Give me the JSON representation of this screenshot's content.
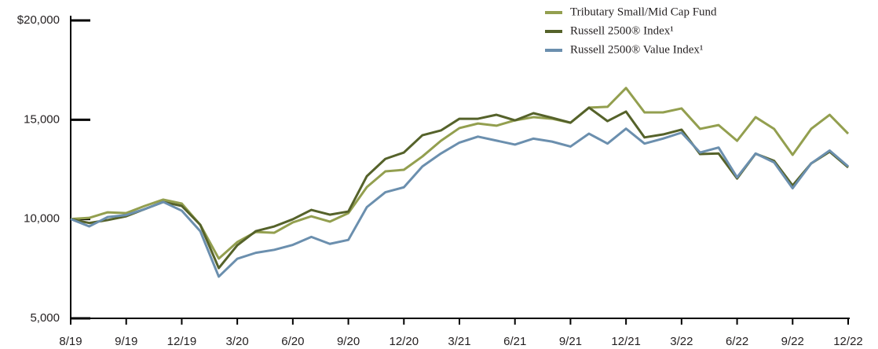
{
  "chart_data": {
    "type": "line",
    "categories": [
      "8/19",
      null,
      null,
      "9/19",
      null,
      null,
      "12/19",
      null,
      null,
      "3/20",
      null,
      null,
      "6/20",
      null,
      null,
      "9/20",
      null,
      null,
      "12/20",
      null,
      null,
      "3/21",
      null,
      null,
      "6/21",
      null,
      null,
      "9/21",
      null,
      null,
      "12/21",
      null,
      null,
      "3/22",
      null,
      null,
      "6/22",
      null,
      null,
      "9/22",
      null,
      null,
      "12/22"
    ],
    "series": [
      {
        "name": "Tributary Small/Mid Cap Fund",
        "color": "#939f4f",
        "values": [
          10000,
          10060,
          10340,
          10300,
          10660,
          10980,
          10780,
          9710,
          8010,
          8840,
          9350,
          9310,
          9830,
          10140,
          9870,
          10300,
          11610,
          12400,
          12480,
          13150,
          13940,
          14580,
          14810,
          14700,
          14970,
          15130,
          15050,
          14850,
          15610,
          15650,
          16600,
          15370,
          15370,
          15570,
          14540,
          14730,
          13940,
          15130,
          14540,
          13230,
          14540,
          15250,
          14300
        ]
      },
      {
        "name": "Russell 2500® Index¹",
        "color": "#55622a",
        "values": [
          10000,
          9800,
          9950,
          10140,
          10500,
          10860,
          10660,
          9710,
          7530,
          8680,
          9390,
          9630,
          9990,
          10460,
          10220,
          10380,
          12160,
          13030,
          13350,
          14220,
          14460,
          15050,
          15050,
          15250,
          14970,
          15330,
          15100,
          14850,
          15610,
          14930,
          15410,
          14110,
          14260,
          14500,
          13270,
          13300,
          12040,
          13290,
          12930,
          11690,
          12800,
          13390,
          12600
        ]
      },
      {
        "name": "Russell 2500® Value Index¹",
        "color": "#6b8fae",
        "values": [
          10000,
          9630,
          10100,
          10200,
          10500,
          10860,
          10420,
          9390,
          7100,
          8000,
          8300,
          8450,
          8700,
          9100,
          8750,
          8950,
          10600,
          11350,
          11600,
          12650,
          13300,
          13850,
          14150,
          13950,
          13750,
          14050,
          13900,
          13650,
          14300,
          13800,
          14550,
          13800,
          14050,
          14350,
          13350,
          13600,
          12100,
          13300,
          12850,
          11550,
          12800,
          13450,
          12650
        ]
      }
    ],
    "ylim": [
      5000,
      20000
    ],
    "yticks": [
      {
        "value": 5000,
        "label": "5,000"
      },
      {
        "value": 10000,
        "label": "10,000"
      },
      {
        "value": 15000,
        "label": "15,000"
      },
      {
        "value": 20000,
        "label": "$20,000"
      }
    ],
    "legend": "top-right"
  }
}
